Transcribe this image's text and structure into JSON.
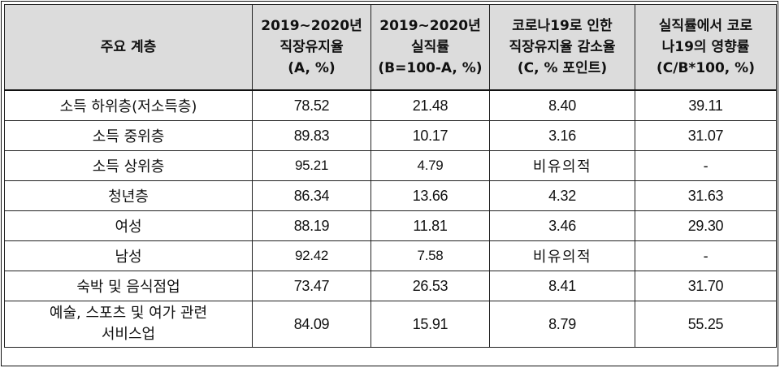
{
  "table": {
    "headers": [
      {
        "lines": [
          "주요 계층"
        ]
      },
      {
        "lines": [
          "2019~2020년",
          "직장유지율",
          "(A, %)"
        ]
      },
      {
        "lines": [
          "2019~2020년",
          "실직률",
          "(B=100-A, %)"
        ]
      },
      {
        "lines": [
          "코로나19로 인한",
          "직장유지율 감소율",
          "(C, % 포인트)"
        ]
      },
      {
        "lines": [
          "실직률에서 코로",
          "나19의 영향률",
          "(C/B*100, %)"
        ]
      }
    ],
    "rows": [
      {
        "group": [
          "소득 하위층(저소득층)"
        ],
        "retention": "78.52",
        "job_loss": "21.48",
        "covid_drop": "8.40",
        "covid_share": "39.11"
      },
      {
        "group": [
          "소득 중위층"
        ],
        "retention": "89.83",
        "job_loss": "10.17",
        "covid_drop": "3.16",
        "covid_share": "31.07"
      },
      {
        "group": [
          "소득 상위층"
        ],
        "retention": "95.21",
        "job_loss": "4.79",
        "covid_drop": "비유의적",
        "covid_share": "-"
      },
      {
        "group": [
          "청년층"
        ],
        "retention": "86.34",
        "job_loss": "13.66",
        "covid_drop": "4.32",
        "covid_share": "31.63"
      },
      {
        "group": [
          "여성"
        ],
        "retention": "88.19",
        "job_loss": "11.81",
        "covid_drop": "3.46",
        "covid_share": "29.30"
      },
      {
        "group": [
          "남성"
        ],
        "retention": "92.42",
        "job_loss": "7.58",
        "covid_drop": "비유의적",
        "covid_share": "-"
      },
      {
        "group": [
          "숙박 및 음식점업"
        ],
        "retention": "73.47",
        "job_loss": "26.53",
        "covid_drop": "8.41",
        "covid_share": "31.70"
      },
      {
        "group": [
          "예술, 스포츠 및 여가 관련",
          "서비스업"
        ],
        "retention": "84.09",
        "job_loss": "15.91",
        "covid_drop": "8.79",
        "covid_share": "55.25"
      }
    ]
  }
}
